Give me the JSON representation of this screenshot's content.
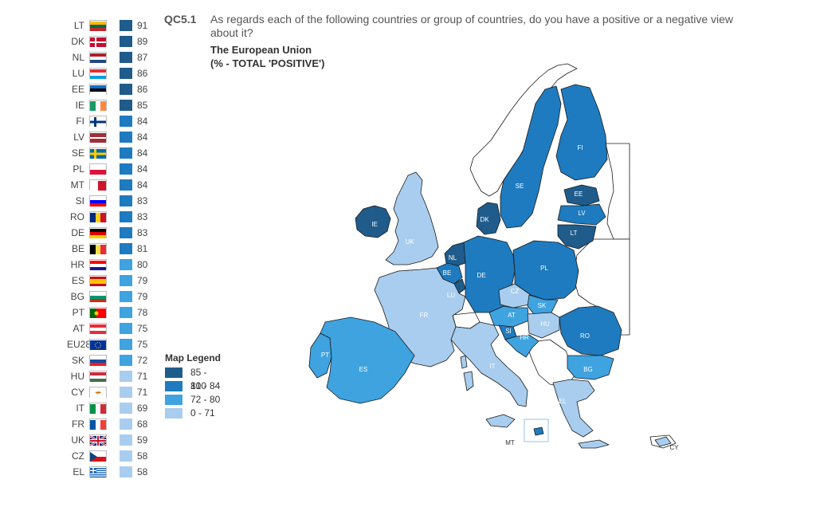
{
  "header": {
    "qcode": "QC5.1",
    "question": "As regards each of the following countries or group of countries, do you have a positive or a negative view about it?",
    "subtitle": "The European Union",
    "subtitle2": "(% - TOTAL 'POSITIVE')"
  },
  "colors": {
    "c85_100": "#1f5c8c",
    "c81_84": "#1e7bbf",
    "c72_80": "#3fa3e0",
    "c0_71": "#a9cdee",
    "noData": "#ffffff",
    "border": "#1a1a1a"
  },
  "ranking": [
    {
      "code": "LT",
      "value": "91",
      "band": "c85_100",
      "flag": [
        "h",
        "#fdb913",
        "#006a44",
        "#c1272d"
      ]
    },
    {
      "code": "DK",
      "value": "89",
      "band": "c85_100",
      "flag": [
        "dk"
      ]
    },
    {
      "code": "NL",
      "value": "87",
      "band": "c85_100",
      "flag": [
        "h",
        "#ae1c28",
        "#ffffff",
        "#21468b"
      ]
    },
    {
      "code": "LU",
      "value": "86",
      "band": "c85_100",
      "flag": [
        "h",
        "#ed2939",
        "#ffffff",
        "#00a1de"
      ]
    },
    {
      "code": "EE",
      "value": "86",
      "band": "c85_100",
      "flag": [
        "h",
        "#0072ce",
        "#000000",
        "#ffffff"
      ]
    },
    {
      "code": "IE",
      "value": "85",
      "band": "c85_100",
      "flag": [
        "v",
        "#169b62",
        "#ffffff",
        "#ff883e"
      ]
    },
    {
      "code": "FI",
      "value": "84",
      "band": "c81_84",
      "flag": [
        "fi"
      ]
    },
    {
      "code": "LV",
      "value": "84",
      "band": "c81_84",
      "flag": [
        "lv"
      ]
    },
    {
      "code": "SE",
      "value": "84",
      "band": "c81_84",
      "flag": [
        "se"
      ]
    },
    {
      "code": "PL",
      "value": "84",
      "band": "c81_84",
      "flag": [
        "h2",
        "#ffffff",
        "#dc143c"
      ]
    },
    {
      "code": "MT",
      "value": "84",
      "band": "c81_84",
      "flag": [
        "v2",
        "#ffffff",
        "#cf142b"
      ]
    },
    {
      "code": "SI",
      "value": "83",
      "band": "c81_84",
      "flag": [
        "h",
        "#ffffff",
        "#0000ff",
        "#ff0000"
      ]
    },
    {
      "code": "RO",
      "value": "83",
      "band": "c81_84",
      "flag": [
        "v",
        "#002b7f",
        "#fcd116",
        "#ce1126"
      ]
    },
    {
      "code": "DE",
      "value": "83",
      "band": "c81_84",
      "flag": [
        "h",
        "#000000",
        "#dd0000",
        "#ffce00"
      ]
    },
    {
      "code": "BE",
      "value": "81",
      "band": "c81_84",
      "flag": [
        "v",
        "#000000",
        "#fae042",
        "#ed2939"
      ]
    },
    {
      "code": "HR",
      "value": "80",
      "band": "c72_80",
      "flag": [
        "h",
        "#ff0000",
        "#ffffff",
        "#171796"
      ]
    },
    {
      "code": "ES",
      "value": "79",
      "band": "c72_80",
      "flag": [
        "es"
      ]
    },
    {
      "code": "BG",
      "value": "79",
      "band": "c72_80",
      "flag": [
        "h",
        "#ffffff",
        "#00966e",
        "#d62612"
      ]
    },
    {
      "code": "PT",
      "value": "78",
      "band": "c72_80",
      "flag": [
        "pt"
      ]
    },
    {
      "code": "AT",
      "value": "75",
      "band": "c72_80",
      "flag": [
        "h",
        "#ed2939",
        "#ffffff",
        "#ed2939"
      ]
    },
    {
      "code": "EU28",
      "value": "75",
      "band": "c72_80",
      "flag": [
        "eu"
      ]
    },
    {
      "code": "SK",
      "value": "72",
      "band": "c72_80",
      "flag": [
        "h",
        "#ffffff",
        "#0b4ea2",
        "#ee1c25"
      ]
    },
    {
      "code": "HU",
      "value": "71",
      "band": "c0_71",
      "flag": [
        "h",
        "#cd2a3e",
        "#ffffff",
        "#436f4d"
      ]
    },
    {
      "code": "CY",
      "value": "71",
      "band": "c0_71",
      "flag": [
        "cy"
      ]
    },
    {
      "code": "IT",
      "value": "69",
      "band": "c0_71",
      "flag": [
        "v",
        "#009246",
        "#ffffff",
        "#ce2b37"
      ]
    },
    {
      "code": "FR",
      "value": "68",
      "band": "c0_71",
      "flag": [
        "v",
        "#0055a4",
        "#ffffff",
        "#ef4135"
      ]
    },
    {
      "code": "UK",
      "value": "59",
      "band": "c0_71",
      "flag": [
        "uk"
      ]
    },
    {
      "code": "CZ",
      "value": "58",
      "band": "c0_71",
      "flag": [
        "cz"
      ]
    },
    {
      "code": "EL",
      "value": "58",
      "band": "c0_71",
      "flag": [
        "el"
      ]
    }
  ],
  "legend": {
    "title": "Map Legend",
    "items": [
      {
        "label": "85 - 100",
        "band": "c85_100"
      },
      {
        "label": "81 - 84",
        "band": "c81_84"
      },
      {
        "label": "72 - 80",
        "band": "c72_80"
      },
      {
        "label": "0 - 71",
        "band": "c0_71"
      }
    ]
  },
  "map": {
    "labels": {
      "IE": "IE",
      "UK": "UK",
      "NL": "NL",
      "BE": "BE",
      "LU": "LU",
      "FR": "FR",
      "PT": "PT",
      "ES": "ES",
      "DE": "DE",
      "DK": "DK",
      "SE": "SE",
      "FI": "FI",
      "EE": "EE",
      "LV": "LV",
      "LT": "LT",
      "PL": "PL",
      "CZ": "CZ",
      "SK": "SK",
      "AT": "AT",
      "HU": "HU",
      "SI": "SI",
      "HR": "HR",
      "RO": "RO",
      "BG": "BG",
      "IT": "IT",
      "EL": "EL",
      "MT": "MT",
      "CY": "CY"
    }
  }
}
